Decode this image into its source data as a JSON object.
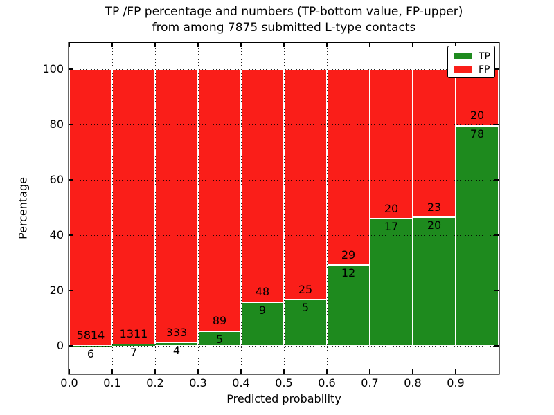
{
  "title": {
    "line1": "TP /FP percentage and numbers (TP-bottom value, FP-upper)",
    "line2": "from among 7875 submitted L-type contacts"
  },
  "axes": {
    "xlabel": "Predicted probability",
    "ylabel": "Percentage"
  },
  "legend": {
    "position": "upper right",
    "items": [
      {
        "label": "TP",
        "color": "#1e8a1e"
      },
      {
        "label": "FP",
        "color": "#fa1e19"
      }
    ]
  },
  "chart_data": {
    "type": "bar",
    "stacked": true,
    "unit": "percent-of-bin",
    "title": "TP /FP percentage and numbers (TP-bottom value, FP-upper) from among 7875 submitted L-type contacts",
    "xlabel": "Predicted probability",
    "ylabel": "Percentage",
    "total_contacts": 7875,
    "bin_edges": [
      0.0,
      0.1,
      0.2,
      0.3,
      0.4,
      0.5,
      0.6,
      0.7,
      0.8,
      0.9,
      1.0
    ],
    "xtick_labels": [
      "0.0",
      "0.1",
      "0.2",
      "0.3",
      "0.4",
      "0.5",
      "0.6",
      "0.7",
      "0.8",
      "0.9"
    ],
    "yticks": [
      0,
      20,
      40,
      60,
      80,
      100
    ],
    "ylim": [
      -10,
      110
    ],
    "grid": true,
    "grid_style": "dotted",
    "bar_edge_color": "#ffffff",
    "series": [
      {
        "name": "TP",
        "color": "#1e8a1e",
        "counts": [
          6,
          7,
          4,
          5,
          9,
          5,
          12,
          17,
          20,
          78
        ],
        "percent": [
          0.1,
          0.53,
          1.19,
          5.32,
          15.79,
          16.67,
          29.27,
          45.95,
          46.51,
          79.59
        ]
      },
      {
        "name": "FP",
        "color": "#fa1e19",
        "counts": [
          5814,
          1311,
          333,
          89,
          48,
          25,
          29,
          20,
          23,
          20
        ],
        "percent": [
          99.9,
          99.47,
          98.81,
          94.68,
          84.21,
          83.33,
          70.73,
          54.05,
          53.49,
          20.41
        ]
      }
    ]
  }
}
